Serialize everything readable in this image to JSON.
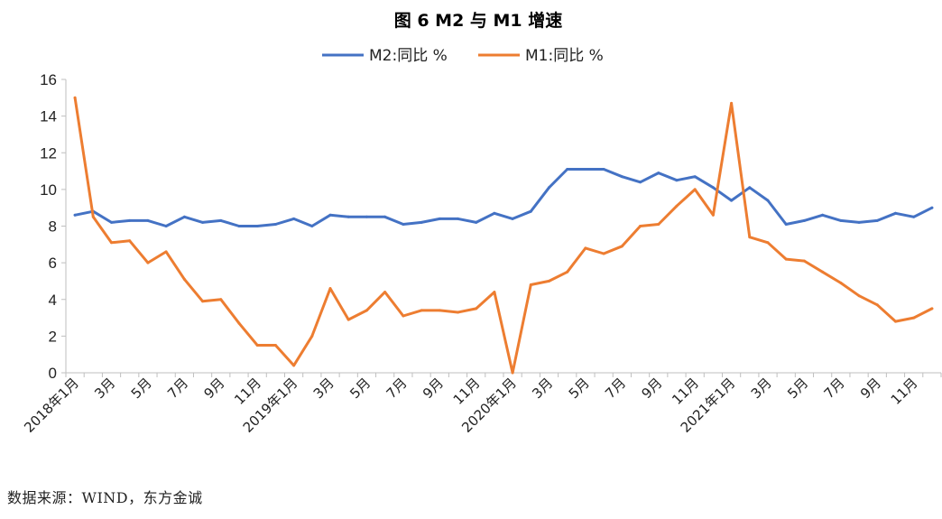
{
  "chart_data": {
    "type": "line",
    "title": "图 6   M2 与 M1 增速",
    "xlabel": "",
    "ylabel": "",
    "ylim": [
      0,
      16
    ],
    "yticks": [
      0,
      2,
      4,
      6,
      8,
      10,
      12,
      14,
      16
    ],
    "grid": false,
    "legend_position": "top-center",
    "x_labels": [
      "2018年1月",
      "3月",
      "5月",
      "7月",
      "9月",
      "11月",
      "2019年1月",
      "3月",
      "5月",
      "7月",
      "9月",
      "11月",
      "2020年1月",
      "3月",
      "5月",
      "7月",
      "9月",
      "11月",
      "2021年1月",
      "3月",
      "5月",
      "7月",
      "9月",
      "11月"
    ],
    "x": [
      "2018-01",
      "2018-02",
      "2018-03",
      "2018-04",
      "2018-05",
      "2018-06",
      "2018-07",
      "2018-08",
      "2018-09",
      "2018-10",
      "2018-11",
      "2018-12",
      "2019-01",
      "2019-02",
      "2019-03",
      "2019-04",
      "2019-05",
      "2019-06",
      "2019-07",
      "2019-08",
      "2019-09",
      "2019-10",
      "2019-11",
      "2019-12",
      "2020-01",
      "2020-02",
      "2020-03",
      "2020-04",
      "2020-05",
      "2020-06",
      "2020-07",
      "2020-08",
      "2020-09",
      "2020-10",
      "2020-11",
      "2020-12",
      "2021-01",
      "2021-02",
      "2021-03",
      "2021-04",
      "2021-05",
      "2021-06",
      "2021-07",
      "2021-08",
      "2021-09",
      "2021-10",
      "2021-11",
      "2021-12"
    ],
    "series": [
      {
        "name": "M2:同比 %",
        "color": "#4472C4",
        "values": [
          8.6,
          8.8,
          8.2,
          8.3,
          8.3,
          8.0,
          8.5,
          8.2,
          8.3,
          8.0,
          8.0,
          8.1,
          8.4,
          8.0,
          8.6,
          8.5,
          8.5,
          8.5,
          8.1,
          8.2,
          8.4,
          8.4,
          8.2,
          8.7,
          8.4,
          8.8,
          10.1,
          11.1,
          11.1,
          11.1,
          10.7,
          10.4,
          10.9,
          10.5,
          10.7,
          10.1,
          9.4,
          10.1,
          9.4,
          8.1,
          8.3,
          8.6,
          8.3,
          8.2,
          8.3,
          8.7,
          8.5,
          9.0
        ]
      },
      {
        "name": "M1:同比 %",
        "color": "#ED7D31",
        "values": [
          15.0,
          8.5,
          7.1,
          7.2,
          6.0,
          6.6,
          5.1,
          3.9,
          4.0,
          2.7,
          1.5,
          1.5,
          0.4,
          2.0,
          4.6,
          2.9,
          3.4,
          4.4,
          3.1,
          3.4,
          3.4,
          3.3,
          3.5,
          4.4,
          0.0,
          4.8,
          5.0,
          5.5,
          6.8,
          6.5,
          6.9,
          8.0,
          8.1,
          9.1,
          10.0,
          8.6,
          14.7,
          7.4,
          7.1,
          6.2,
          6.1,
          5.5,
          4.9,
          4.2,
          3.7,
          2.8,
          3.0,
          3.5
        ]
      }
    ]
  },
  "source_text": "数据来源：WIND，东方金诚"
}
